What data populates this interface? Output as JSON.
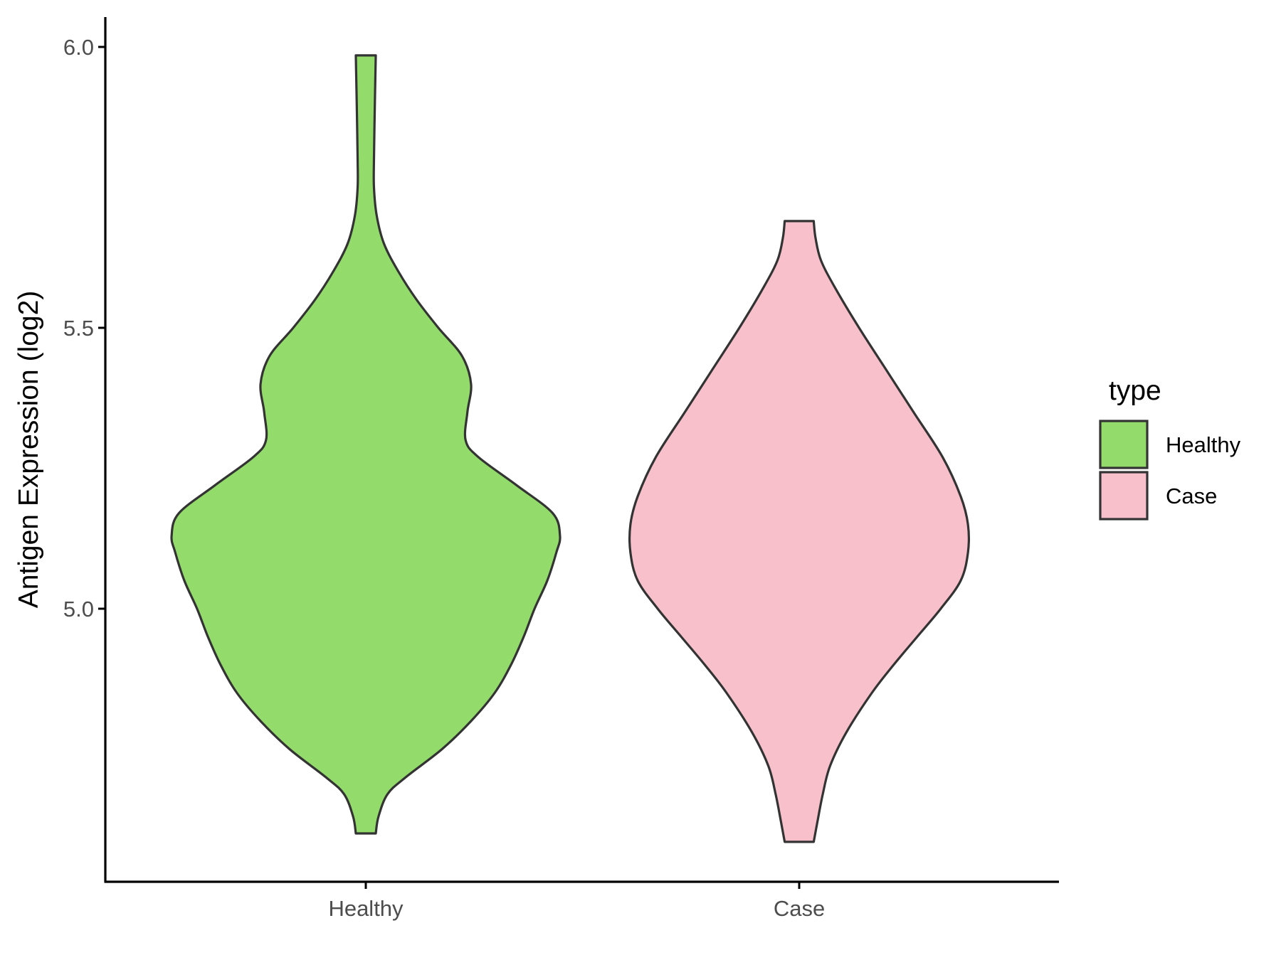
{
  "chart_data": {
    "type": "violin",
    "title": "",
    "xlabel": "",
    "ylabel": "Antigen Expression (log2)",
    "ylim": [
      4.55,
      6.05
    ],
    "yticks": [
      "5.0",
      "5.5",
      "6.0"
    ],
    "categories": [
      "Healthy",
      "Case"
    ],
    "grid": false,
    "legend": {
      "title": "type",
      "position": "right",
      "items": [
        {
          "label": "Healthy",
          "color": "#93DB6B"
        },
        {
          "label": "Case",
          "color": "#F7C0CB"
        }
      ]
    },
    "series": [
      {
        "name": "Healthy",
        "color": "#93DB6B",
        "min": 4.6,
        "max": 5.985,
        "density_profile": [
          [
            4.6,
            0.055
          ],
          [
            4.63,
            0.07
          ],
          [
            4.67,
            0.12
          ],
          [
            4.7,
            0.22
          ],
          [
            4.75,
            0.42
          ],
          [
            4.8,
            0.58
          ],
          [
            4.85,
            0.71
          ],
          [
            4.9,
            0.8
          ],
          [
            4.95,
            0.87
          ],
          [
            5.0,
            0.93
          ],
          [
            5.05,
            1.0
          ],
          [
            5.1,
            1.05
          ],
          [
            5.13,
            1.07
          ],
          [
            5.17,
            1.03
          ],
          [
            5.22,
            0.83
          ],
          [
            5.27,
            0.62
          ],
          [
            5.3,
            0.55
          ],
          [
            5.35,
            0.56
          ],
          [
            5.4,
            0.58
          ],
          [
            5.45,
            0.53
          ],
          [
            5.5,
            0.4
          ],
          [
            5.55,
            0.28
          ],
          [
            5.6,
            0.18
          ],
          [
            5.65,
            0.1
          ],
          [
            5.7,
            0.06
          ],
          [
            5.75,
            0.045
          ],
          [
            5.8,
            0.045
          ],
          [
            5.9,
            0.05
          ],
          [
            5.985,
            0.055
          ]
        ]
      },
      {
        "name": "Case",
        "color": "#F7C0CB",
        "min": 4.585,
        "max": 5.69,
        "density_profile": [
          [
            4.585,
            0.08
          ],
          [
            4.62,
            0.1
          ],
          [
            4.67,
            0.13
          ],
          [
            4.72,
            0.17
          ],
          [
            4.78,
            0.26
          ],
          [
            4.85,
            0.4
          ],
          [
            4.9,
            0.52
          ],
          [
            4.95,
            0.65
          ],
          [
            5.0,
            0.78
          ],
          [
            5.05,
            0.89
          ],
          [
            5.1,
            0.93
          ],
          [
            5.15,
            0.93
          ],
          [
            5.2,
            0.89
          ],
          [
            5.27,
            0.79
          ],
          [
            5.35,
            0.63
          ],
          [
            5.42,
            0.49
          ],
          [
            5.5,
            0.33
          ],
          [
            5.57,
            0.2
          ],
          [
            5.62,
            0.12
          ],
          [
            5.66,
            0.09
          ],
          [
            5.69,
            0.08
          ]
        ]
      }
    ]
  }
}
